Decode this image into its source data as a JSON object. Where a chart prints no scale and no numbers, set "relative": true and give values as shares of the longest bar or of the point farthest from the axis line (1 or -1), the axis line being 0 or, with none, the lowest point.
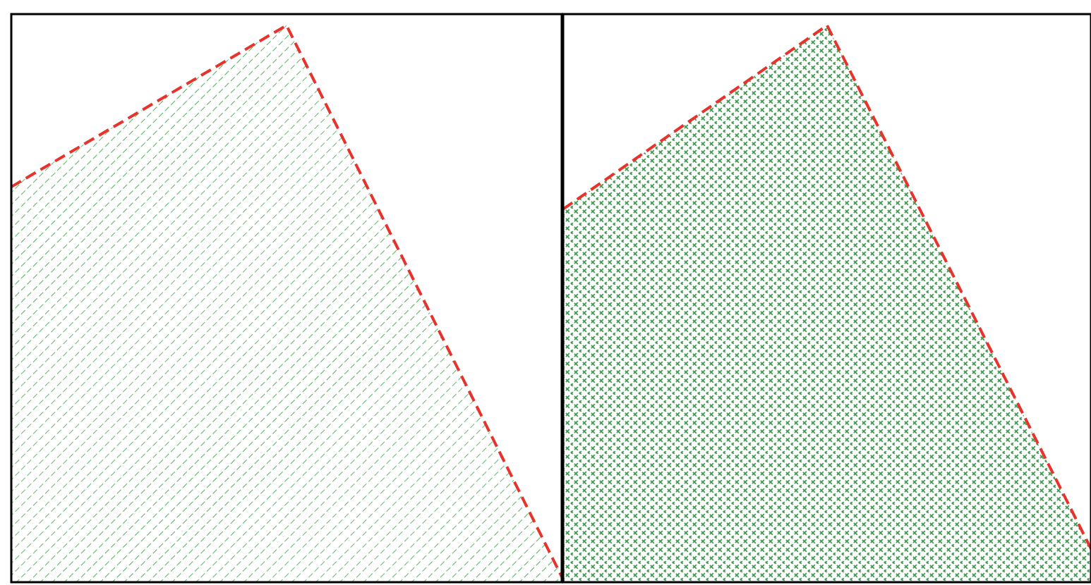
{
  "chart_data": [
    {
      "type": "area",
      "relative": true,
      "categories": [
        null,
        null,
        null
      ],
      "line_style": "dashed",
      "series": [
        {
          "color": "#e8322c",
          "values": [
            0.71,
            1,
            0.01
          ]
        }
      ]
    },
    {
      "type": "area",
      "relative": true,
      "categories": [
        null,
        null,
        null
      ],
      "line_style": "dashed",
      "series": [
        {
          "color": "#e8322c",
          "values": [
            0.67,
            1,
            0.06
          ]
        }
      ]
    }
  ]
}
